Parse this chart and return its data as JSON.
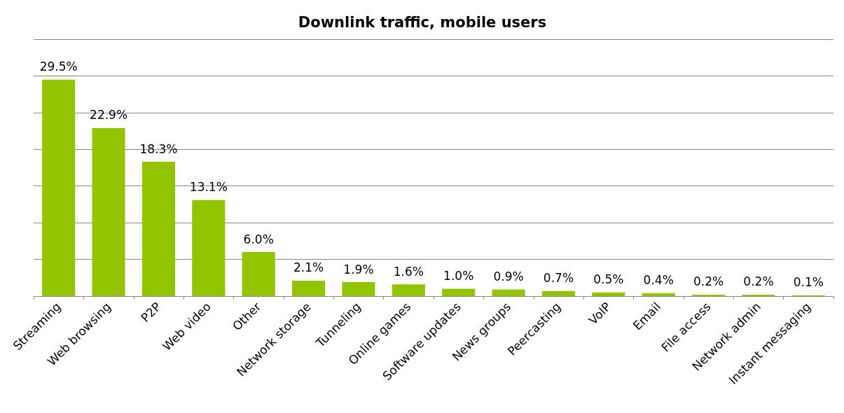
{
  "chart_data": {
    "type": "bar",
    "title": "Downlink traffic, mobile users",
    "categories": [
      "Streaming",
      "Web browsing",
      "P2P",
      "Web video",
      "Other",
      "Network storage",
      "Tunneling",
      "Online games",
      "Software updates",
      "News groups",
      "Peercasting",
      "VoIP",
      "Email",
      "File access",
      "Network admin",
      "Instant messaging"
    ],
    "values": [
      29.5,
      22.9,
      18.3,
      13.1,
      6.0,
      2.1,
      1.9,
      1.6,
      1.0,
      0.9,
      0.7,
      0.5,
      0.4,
      0.2,
      0.2,
      0.1
    ],
    "value_labels": [
      "29.5%",
      "22.9%",
      "18.3%",
      "13.1%",
      "6.0%",
      "2.1%",
      "1.9%",
      "1.6%",
      "1.0%",
      "0.9%",
      "0.7%",
      "0.5%",
      "0.4%",
      "0.2%",
      "0.2%",
      "0.1%"
    ],
    "color": "#92c400",
    "ylim": [
      0,
      35
    ],
    "yticks": [
      {
        "value": 0,
        "label": null
      },
      {
        "value": 5,
        "label": null
      },
      {
        "value": 10,
        "label": null
      },
      {
        "value": 15,
        "label": null
      },
      {
        "value": 20,
        "label": null
      },
      {
        "value": 25,
        "label": null
      },
      {
        "value": 30,
        "label": null
      },
      {
        "value": 35,
        "label": null
      }
    ],
    "tick_labels": "x",
    "grid": "y"
  }
}
